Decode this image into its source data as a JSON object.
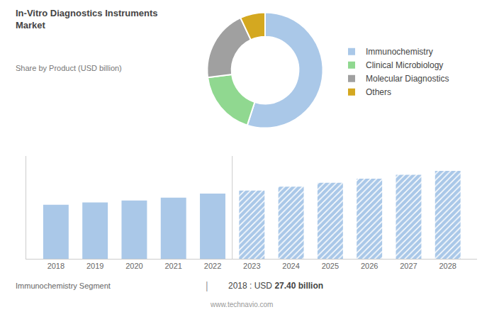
{
  "chart_data": [
    {
      "type": "pie",
      "title": "In-Vitro Diagnostics Instruments\nMarket",
      "subtitle": "Share by Product (USD billion)",
      "categories": [
        "Immunochemistry",
        "Clinical Microbiology",
        "Molecular Diagnostics",
        "Others"
      ],
      "values": [
        55,
        18,
        20,
        7
      ],
      "colors": [
        "#aac8e8",
        "#90d890",
        "#a0a0a0",
        "#d4a820"
      ],
      "legend": "right",
      "data_labels": false
    },
    {
      "type": "bar",
      "x": [
        2018,
        2019,
        2020,
        2021,
        2022,
        2023,
        2024,
        2025,
        2026,
        2027,
        2028
      ],
      "series": [
        {
          "color": "#aac8e8",
          "values": [
            27.4,
            28.5,
            29.5,
            31.0,
            33.0,
            null,
            null,
            null,
            null,
            null,
            null
          ]
        },
        {
          "color": "#aac8e8",
          "marker": "hatched",
          "values": [
            null,
            null,
            null,
            null,
            null,
            34.5,
            36.5,
            38.5,
            40.5,
            42.5,
            44.5
          ]
        }
      ],
      "xlim": [
        2017.25,
        2028.75
      ],
      "xticks": [
        2018,
        2019,
        2020,
        2021,
        2022,
        2023,
        2024,
        2025,
        2026,
        2027,
        2028
      ],
      "ylim": [
        0,
        52
      ],
      "yticks": [],
      "grid": false,
      "tick_labels": "x",
      "annotations": [
        "Immunochemistry Segment",
        "|",
        "2018 : USD",
        "27.40 billion",
        "www.technavio.com"
      ]
    }
  ]
}
